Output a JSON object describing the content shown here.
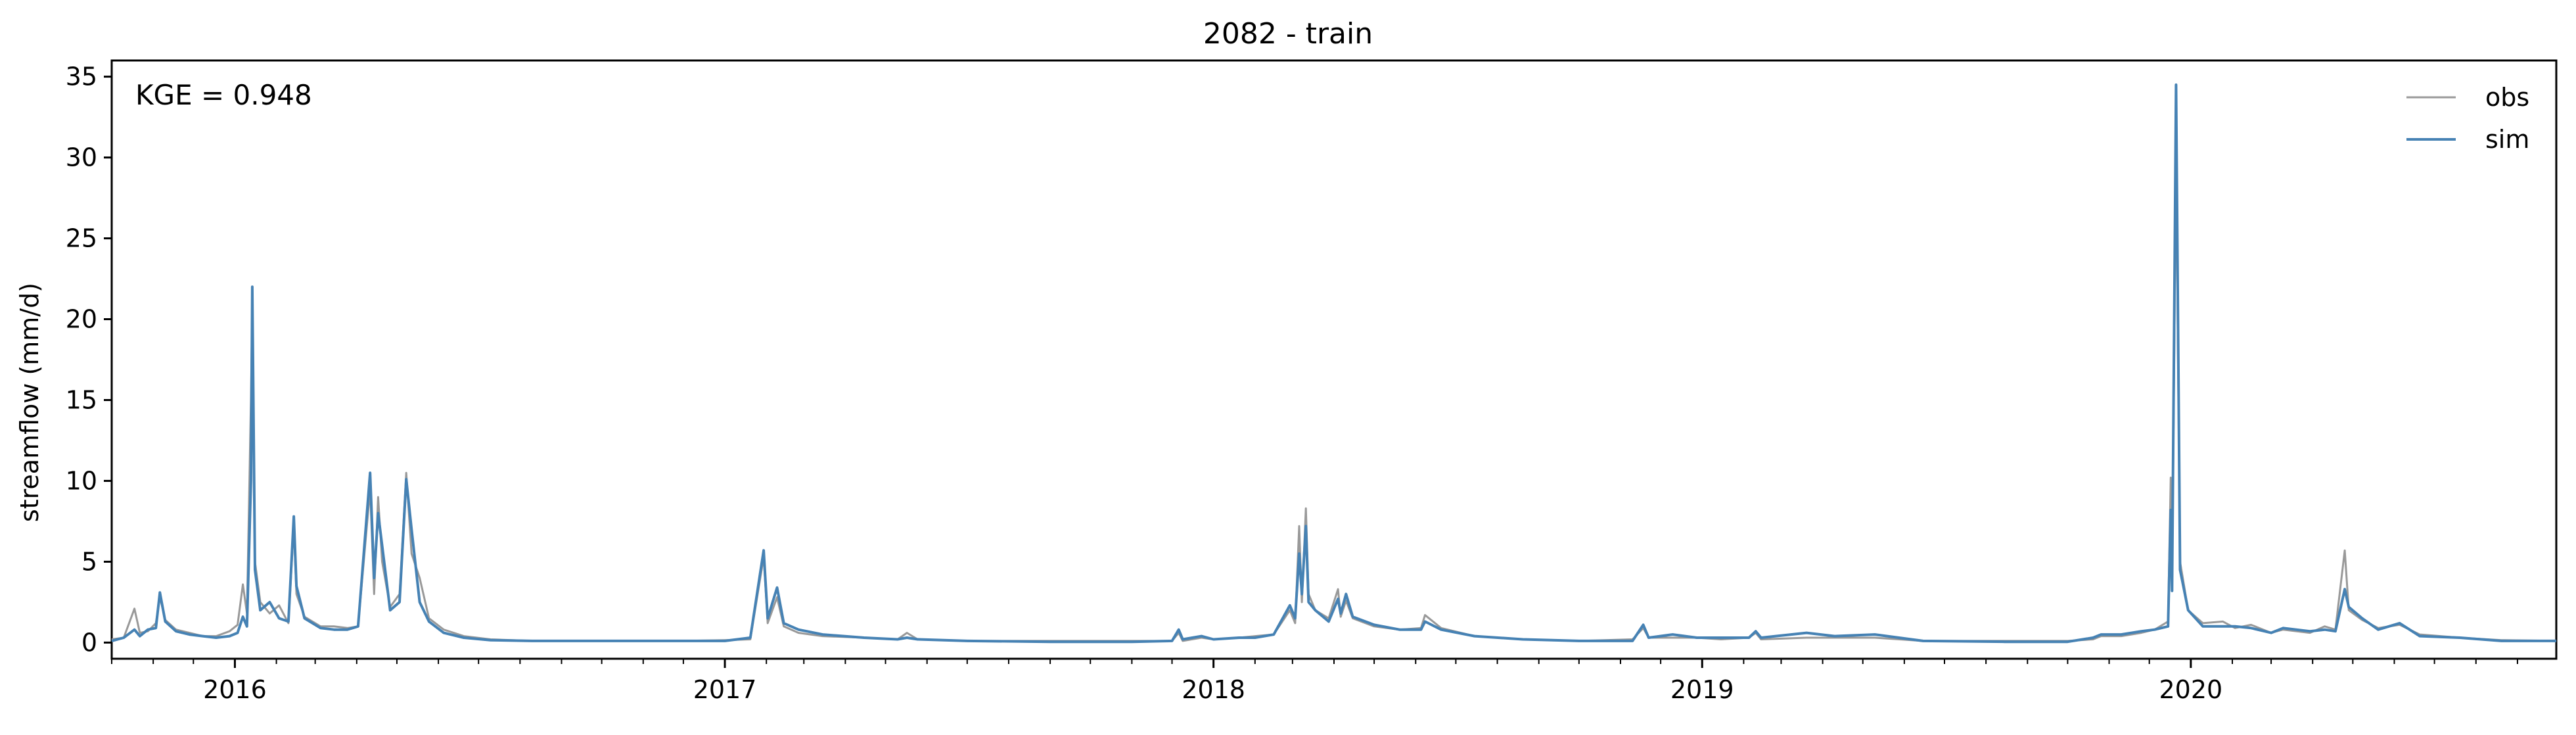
{
  "chart_data": {
    "type": "line",
    "title": "2082 - train",
    "xlabel": "",
    "ylabel": "streamflow (mm/d)",
    "annotation": "KGE = 0.948",
    "xlim": [
      "2015-10-01",
      "2020-09-30"
    ],
    "ylim": [
      -1,
      36
    ],
    "x_ticks": [
      "2016",
      "2017",
      "2018",
      "2019",
      "2020"
    ],
    "y_ticks": [
      0,
      5,
      10,
      15,
      20,
      25,
      30,
      35
    ],
    "grid": false,
    "legend_position": "top-right",
    "series": [
      {
        "name": "obs",
        "color": "#999999",
        "points": [
          [
            "2015-10-01",
            0.2
          ],
          [
            "2015-10-10",
            0.3
          ],
          [
            "2015-10-18",
            2.1
          ],
          [
            "2015-10-22",
            0.6
          ],
          [
            "2015-10-28",
            0.7
          ],
          [
            "2015-11-03",
            1.2
          ],
          [
            "2015-11-06",
            2.8
          ],
          [
            "2015-11-10",
            1.4
          ],
          [
            "2015-11-18",
            0.8
          ],
          [
            "2015-11-28",
            0.6
          ],
          [
            "2015-12-08",
            0.4
          ],
          [
            "2015-12-18",
            0.4
          ],
          [
            "2015-12-28",
            0.7
          ],
          [
            "2016-01-03",
            1.1
          ],
          [
            "2016-01-07",
            3.6
          ],
          [
            "2016-01-10",
            1.8
          ],
          [
            "2016-01-13",
            15.0
          ],
          [
            "2016-01-14",
            21.0
          ],
          [
            "2016-01-16",
            5.0
          ],
          [
            "2016-01-20",
            2.5
          ],
          [
            "2016-01-27",
            1.8
          ],
          [
            "2016-02-03",
            2.3
          ],
          [
            "2016-02-10",
            1.2
          ],
          [
            "2016-02-14",
            7.2
          ],
          [
            "2016-02-16",
            3.0
          ],
          [
            "2016-02-22",
            1.6
          ],
          [
            "2016-03-05",
            1.0
          ],
          [
            "2016-03-15",
            1.0
          ],
          [
            "2016-03-25",
            0.9
          ],
          [
            "2016-04-02",
            1.0
          ],
          [
            "2016-04-11",
            9.5
          ],
          [
            "2016-04-14",
            3.0
          ],
          [
            "2016-04-17",
            9.0
          ],
          [
            "2016-04-20",
            5.0
          ],
          [
            "2016-04-26",
            2.2
          ],
          [
            "2016-05-03",
            3.0
          ],
          [
            "2016-05-08",
            10.5
          ],
          [
            "2016-05-12",
            5.5
          ],
          [
            "2016-05-18",
            4.0
          ],
          [
            "2016-05-25",
            1.5
          ],
          [
            "2016-06-05",
            0.8
          ],
          [
            "2016-06-20",
            0.4
          ],
          [
            "2016-07-10",
            0.2
          ],
          [
            "2016-08-10",
            0.1
          ],
          [
            "2016-09-15",
            0.1
          ],
          [
            "2016-10-20",
            0.1
          ],
          [
            "2016-12-01",
            0.1
          ],
          [
            "2017-01-01",
            0.15
          ],
          [
            "2017-01-20",
            0.2
          ],
          [
            "2017-01-30",
            5.3
          ],
          [
            "2017-02-02",
            1.2
          ],
          [
            "2017-02-09",
            2.8
          ],
          [
            "2017-02-14",
            1.0
          ],
          [
            "2017-02-25",
            0.6
          ],
          [
            "2017-03-15",
            0.4
          ],
          [
            "2017-04-15",
            0.3
          ],
          [
            "2017-05-10",
            0.2
          ],
          [
            "2017-05-17",
            0.6
          ],
          [
            "2017-05-25",
            0.2
          ],
          [
            "2017-07-01",
            0.1
          ],
          [
            "2017-09-01",
            0.1
          ],
          [
            "2017-11-01",
            0.1
          ],
          [
            "2017-12-01",
            0.1
          ],
          [
            "2017-12-06",
            0.6
          ],
          [
            "2017-12-09",
            0.1
          ],
          [
            "2017-12-23",
            0.3
          ],
          [
            "2018-01-01",
            0.2
          ],
          [
            "2018-01-20",
            0.3
          ],
          [
            "2018-02-01",
            0.4
          ],
          [
            "2018-02-15",
            0.5
          ],
          [
            "2018-02-27",
            2.0
          ],
          [
            "2018-03-03",
            1.2
          ],
          [
            "2018-03-06",
            7.2
          ],
          [
            "2018-03-08",
            2.5
          ],
          [
            "2018-03-11",
            8.3
          ],
          [
            "2018-03-13",
            3.0
          ],
          [
            "2018-03-18",
            2.0
          ],
          [
            "2018-03-28",
            1.5
          ],
          [
            "2018-04-04",
            3.3
          ],
          [
            "2018-04-06",
            1.6
          ],
          [
            "2018-04-10",
            2.6
          ],
          [
            "2018-04-15",
            1.5
          ],
          [
            "2018-05-01",
            1.0
          ],
          [
            "2018-05-20",
            0.8
          ],
          [
            "2018-06-05",
            0.9
          ],
          [
            "2018-06-08",
            1.7
          ],
          [
            "2018-06-20",
            0.9
          ],
          [
            "2018-07-15",
            0.4
          ],
          [
            "2018-08-20",
            0.2
          ],
          [
            "2018-10-01",
            0.1
          ],
          [
            "2018-11-10",
            0.2
          ],
          [
            "2018-11-18",
            0.9
          ],
          [
            "2018-11-22",
            0.3
          ],
          [
            "2018-12-10",
            0.3
          ],
          [
            "2018-12-28",
            0.3
          ],
          [
            "2019-01-15",
            0.2
          ],
          [
            "2019-02-05",
            0.3
          ],
          [
            "2019-02-10",
            0.6
          ],
          [
            "2019-02-14",
            0.2
          ],
          [
            "2019-03-20",
            0.3
          ],
          [
            "2019-04-10",
            0.3
          ],
          [
            "2019-05-10",
            0.3
          ],
          [
            "2019-06-15",
            0.1
          ],
          [
            "2019-08-15",
            0.1
          ],
          [
            "2019-10-01",
            0.1
          ],
          [
            "2019-10-20",
            0.2
          ],
          [
            "2019-10-26",
            0.4
          ],
          [
            "2019-11-10",
            0.4
          ],
          [
            "2019-11-25",
            0.6
          ],
          [
            "2019-12-05",
            0.8
          ],
          [
            "2019-12-15",
            1.3
          ],
          [
            "2019-12-17",
            10.2
          ],
          [
            "2019-12-18",
            3.5
          ],
          [
            "2019-12-21",
            30.0
          ],
          [
            "2019-12-24",
            5.0
          ],
          [
            "2019-12-30",
            2.0
          ],
          [
            "2020-01-10",
            1.2
          ],
          [
            "2020-01-25",
            1.3
          ],
          [
            "2020-02-03",
            0.9
          ],
          [
            "2020-02-15",
            1.1
          ],
          [
            "2020-03-01",
            0.6
          ],
          [
            "2020-03-10",
            0.8
          ],
          [
            "2020-03-30",
            0.6
          ],
          [
            "2020-04-10",
            1.0
          ],
          [
            "2020-04-18",
            0.8
          ],
          [
            "2020-04-25",
            5.7
          ],
          [
            "2020-04-28",
            2.0
          ],
          [
            "2020-05-08",
            1.4
          ],
          [
            "2020-05-20",
            0.9
          ],
          [
            "2020-06-05",
            1.1
          ],
          [
            "2020-06-20",
            0.5
          ],
          [
            "2020-07-20",
            0.3
          ],
          [
            "2020-08-20",
            0.15
          ],
          [
            "2020-09-30",
            0.1
          ]
        ]
      },
      {
        "name": "sim",
        "color": "#4682b4",
        "points": [
          [
            "2015-10-01",
            0.1
          ],
          [
            "2015-10-10",
            0.3
          ],
          [
            "2015-10-18",
            0.8
          ],
          [
            "2015-10-22",
            0.4
          ],
          [
            "2015-10-28",
            0.8
          ],
          [
            "2015-11-03",
            0.9
          ],
          [
            "2015-11-06",
            3.1
          ],
          [
            "2015-11-10",
            1.3
          ],
          [
            "2015-11-18",
            0.7
          ],
          [
            "2015-11-28",
            0.5
          ],
          [
            "2015-12-08",
            0.4
          ],
          [
            "2015-12-18",
            0.3
          ],
          [
            "2015-12-28",
            0.4
          ],
          [
            "2016-01-03",
            0.6
          ],
          [
            "2016-01-07",
            1.6
          ],
          [
            "2016-01-10",
            1.0
          ],
          [
            "2016-01-13",
            10.0
          ],
          [
            "2016-01-14",
            22.0
          ],
          [
            "2016-01-16",
            4.5
          ],
          [
            "2016-01-20",
            2.0
          ],
          [
            "2016-01-27",
            2.5
          ],
          [
            "2016-02-03",
            1.5
          ],
          [
            "2016-02-10",
            1.3
          ],
          [
            "2016-02-14",
            7.8
          ],
          [
            "2016-02-16",
            3.5
          ],
          [
            "2016-02-22",
            1.5
          ],
          [
            "2016-03-05",
            0.9
          ],
          [
            "2016-03-15",
            0.8
          ],
          [
            "2016-03-25",
            0.8
          ],
          [
            "2016-04-02",
            1.0
          ],
          [
            "2016-04-11",
            10.5
          ],
          [
            "2016-04-14",
            4.0
          ],
          [
            "2016-04-17",
            8.0
          ],
          [
            "2016-04-20",
            6.0
          ],
          [
            "2016-04-26",
            2.0
          ],
          [
            "2016-05-03",
            2.5
          ],
          [
            "2016-05-08",
            10.1
          ],
          [
            "2016-05-12",
            7.0
          ],
          [
            "2016-05-18",
            2.5
          ],
          [
            "2016-05-25",
            1.3
          ],
          [
            "2016-06-05",
            0.6
          ],
          [
            "2016-06-20",
            0.3
          ],
          [
            "2016-07-10",
            0.15
          ],
          [
            "2016-08-10",
            0.1
          ],
          [
            "2016-09-15",
            0.1
          ],
          [
            "2016-10-20",
            0.1
          ],
          [
            "2016-12-01",
            0.1
          ],
          [
            "2017-01-01",
            0.1
          ],
          [
            "2017-01-20",
            0.3
          ],
          [
            "2017-01-30",
            5.7
          ],
          [
            "2017-02-02",
            1.5
          ],
          [
            "2017-02-09",
            3.4
          ],
          [
            "2017-02-14",
            1.2
          ],
          [
            "2017-02-25",
            0.8
          ],
          [
            "2017-03-15",
            0.5
          ],
          [
            "2017-04-15",
            0.3
          ],
          [
            "2017-05-10",
            0.2
          ],
          [
            "2017-05-17",
            0.3
          ],
          [
            "2017-05-25",
            0.2
          ],
          [
            "2017-07-01",
            0.1
          ],
          [
            "2017-09-01",
            0.05
          ],
          [
            "2017-11-01",
            0.05
          ],
          [
            "2017-12-01",
            0.1
          ],
          [
            "2017-12-06",
            0.8
          ],
          [
            "2017-12-09",
            0.2
          ],
          [
            "2017-12-23",
            0.4
          ],
          [
            "2018-01-01",
            0.2
          ],
          [
            "2018-01-20",
            0.3
          ],
          [
            "2018-02-01",
            0.3
          ],
          [
            "2018-02-15",
            0.5
          ],
          [
            "2018-02-27",
            2.3
          ],
          [
            "2018-03-03",
            1.5
          ],
          [
            "2018-03-06",
            5.5
          ],
          [
            "2018-03-08",
            3.0
          ],
          [
            "2018-03-11",
            7.2
          ],
          [
            "2018-03-13",
            2.5
          ],
          [
            "2018-03-18",
            2.0
          ],
          [
            "2018-03-28",
            1.3
          ],
          [
            "2018-04-04",
            2.7
          ],
          [
            "2018-04-06",
            1.8
          ],
          [
            "2018-04-10",
            3.0
          ],
          [
            "2018-04-15",
            1.6
          ],
          [
            "2018-05-01",
            1.1
          ],
          [
            "2018-05-20",
            0.8
          ],
          [
            "2018-06-05",
            0.8
          ],
          [
            "2018-06-08",
            1.3
          ],
          [
            "2018-06-20",
            0.8
          ],
          [
            "2018-07-15",
            0.4
          ],
          [
            "2018-08-20",
            0.2
          ],
          [
            "2018-10-01",
            0.1
          ],
          [
            "2018-11-10",
            0.1
          ],
          [
            "2018-11-18",
            1.1
          ],
          [
            "2018-11-22",
            0.3
          ],
          [
            "2018-12-10",
            0.5
          ],
          [
            "2018-12-28",
            0.3
          ],
          [
            "2019-01-15",
            0.3
          ],
          [
            "2019-02-05",
            0.3
          ],
          [
            "2019-02-10",
            0.7
          ],
          [
            "2019-02-14",
            0.3
          ],
          [
            "2019-03-20",
            0.6
          ],
          [
            "2019-04-10",
            0.4
          ],
          [
            "2019-05-10",
            0.5
          ],
          [
            "2019-06-15",
            0.1
          ],
          [
            "2019-08-15",
            0.05
          ],
          [
            "2019-10-01",
            0.05
          ],
          [
            "2019-10-20",
            0.3
          ],
          [
            "2019-10-26",
            0.5
          ],
          [
            "2019-11-10",
            0.5
          ],
          [
            "2019-11-25",
            0.7
          ],
          [
            "2019-12-05",
            0.8
          ],
          [
            "2019-12-15",
            1.0
          ],
          [
            "2019-12-17",
            8.2
          ],
          [
            "2019-12-18",
            3.2
          ],
          [
            "2019-12-21",
            34.5
          ],
          [
            "2019-12-24",
            4.5
          ],
          [
            "2019-12-30",
            2.0
          ],
          [
            "2020-01-10",
            1.0
          ],
          [
            "2020-01-25",
            1.0
          ],
          [
            "2020-02-03",
            1.0
          ],
          [
            "2020-02-15",
            0.9
          ],
          [
            "2020-03-01",
            0.6
          ],
          [
            "2020-03-10",
            0.9
          ],
          [
            "2020-03-30",
            0.7
          ],
          [
            "2020-04-10",
            0.8
          ],
          [
            "2020-04-18",
            0.7
          ],
          [
            "2020-04-25",
            3.3
          ],
          [
            "2020-04-28",
            2.2
          ],
          [
            "2020-05-08",
            1.5
          ],
          [
            "2020-05-20",
            0.8
          ],
          [
            "2020-06-05",
            1.2
          ],
          [
            "2020-06-20",
            0.4
          ],
          [
            "2020-07-20",
            0.3
          ],
          [
            "2020-08-20",
            0.1
          ],
          [
            "2020-09-30",
            0.1
          ]
        ]
      }
    ]
  }
}
